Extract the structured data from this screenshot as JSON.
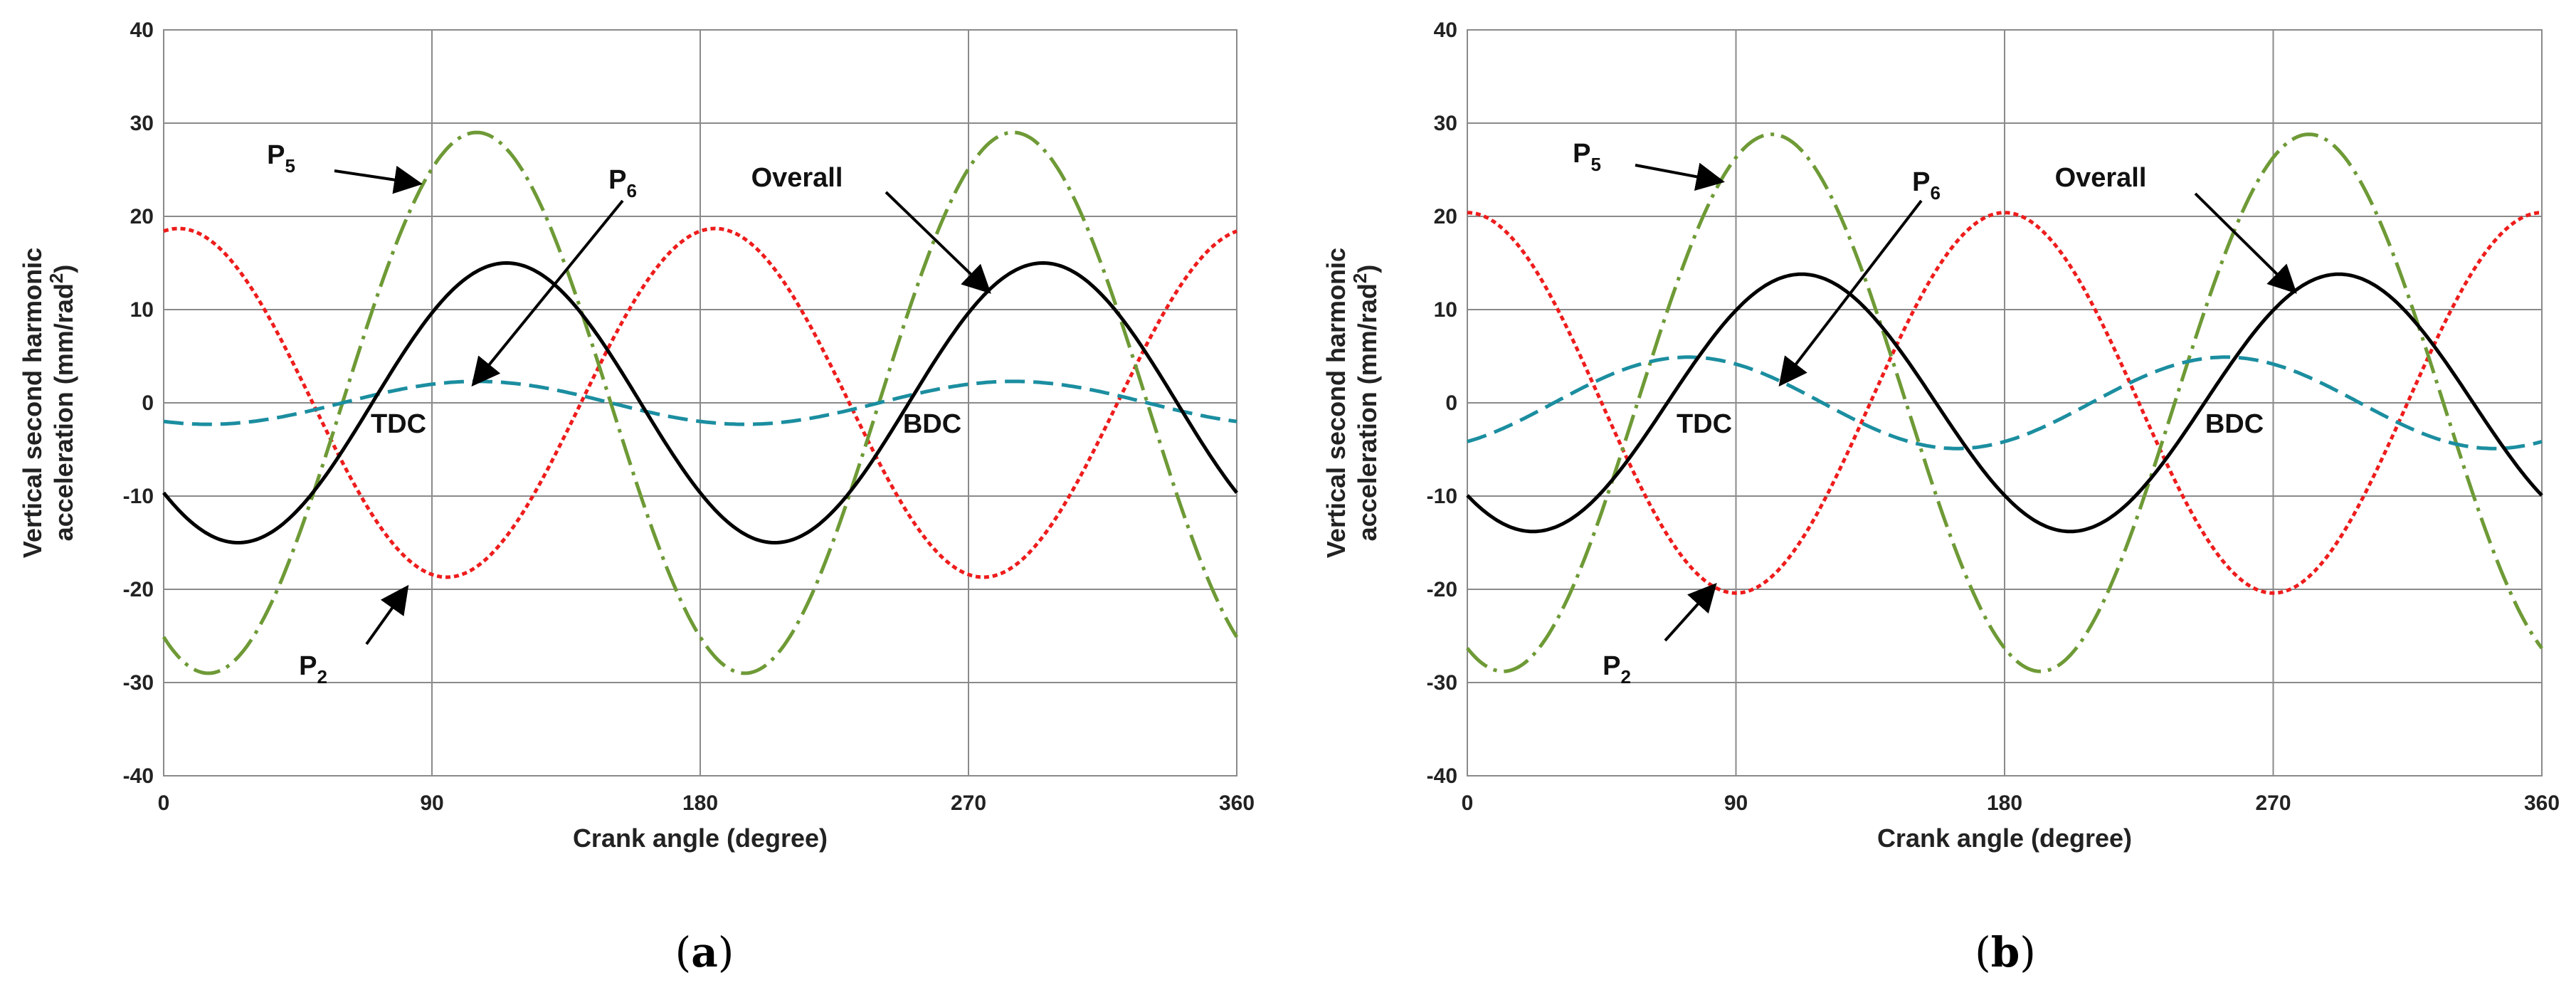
{
  "chart_data": [
    {
      "type": "line",
      "panel_label": "a",
      "xlabel": "Crank angle (degree)",
      "ylabel_line1": "Vertical second harmonic",
      "ylabel_line2": "acceleration (mm/rad",
      "ylabel_sup": "2",
      "ylabel_end": ")",
      "xlim": [
        0,
        360
      ],
      "ylim": [
        -40,
        40
      ],
      "xticks": [
        0,
        90,
        180,
        270,
        360
      ],
      "yticks": [
        -40,
        -30,
        -20,
        -10,
        0,
        10,
        20,
        30,
        40
      ],
      "grid": true,
      "series": [
        {
          "name": "P2",
          "amplitude": 18.7,
          "peak_deg": 5,
          "color": "#ee1c1c",
          "dash": "7,5"
        },
        {
          "name": "P5",
          "amplitude": 29,
          "peak_deg": 105,
          "color": "#6e9a36",
          "dash": "38,10,5,10"
        },
        {
          "name": "P6",
          "amplitude": 2.3,
          "peak_deg": 105,
          "color": "#1b8ea0",
          "dash": "28,12"
        },
        {
          "name": "Overall",
          "amplitude": 15,
          "peak_deg": 115,
          "color": "#000000",
          "dash": ""
        }
      ],
      "annotations": [
        {
          "label": "P",
          "sub": "5"
        },
        {
          "label": "P",
          "sub": "6"
        },
        {
          "label": "Overall"
        },
        {
          "label": "TDC"
        },
        {
          "label": "BDC"
        },
        {
          "label": "P",
          "sub": "2"
        }
      ]
    },
    {
      "type": "line",
      "panel_label": "b",
      "xlabel": "Crank angle (degree)",
      "ylabel_line1": "Vertical second harmonic",
      "ylabel_line2": "acceleration (mm/rad",
      "ylabel_sup": "2",
      "ylabel_end": ")",
      "xlim": [
        0,
        360
      ],
      "ylim": [
        -40,
        40
      ],
      "xticks": [
        0,
        90,
        180,
        270,
        360
      ],
      "yticks": [
        -40,
        -30,
        -20,
        -10,
        0,
        10,
        20,
        30,
        40
      ],
      "grid": true,
      "series": [
        {
          "name": "P2",
          "amplitude": 20.4,
          "peak_deg": 0,
          "color": "#ee1c1c",
          "dash": "7,5"
        },
        {
          "name": "P5",
          "amplitude": 28.8,
          "peak_deg": 102,
          "color": "#6e9a36",
          "dash": "38,10,5,10"
        },
        {
          "name": "P6",
          "amplitude": 4.9,
          "peak_deg": 74,
          "color": "#1b8ea0",
          "dash": "28,12"
        },
        {
          "name": "Overall",
          "amplitude": 13.8,
          "peak_deg": 112,
          "color": "#000000",
          "dash": ""
        }
      ],
      "annotations": [
        {
          "label": "P",
          "sub": "5"
        },
        {
          "label": "P",
          "sub": "6"
        },
        {
          "label": "Overall"
        },
        {
          "label": "TDC"
        },
        {
          "label": "BDC"
        },
        {
          "label": "P",
          "sub": "2"
        }
      ]
    }
  ]
}
